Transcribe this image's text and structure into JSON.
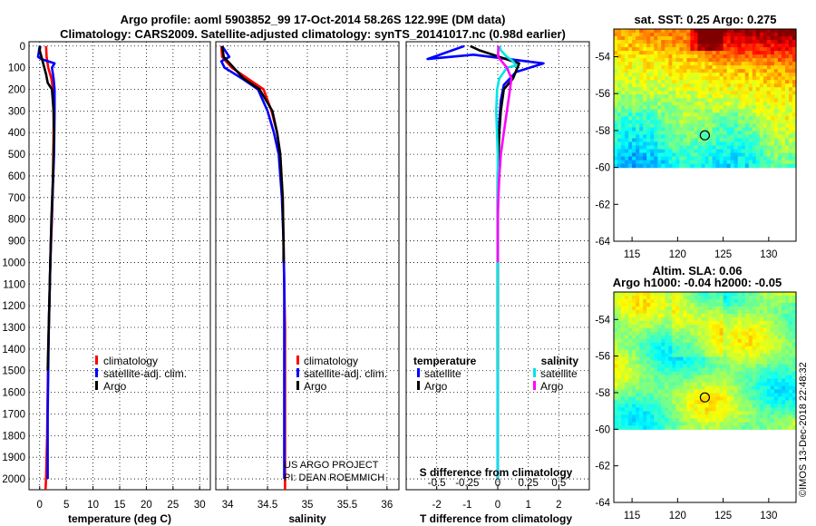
{
  "title_line1": "Argo profile: aoml 5903852_99 17-Oct-2014 58.26S 122.99E (DM data)",
  "title_line2": "Climatology: CARS2009. Satellite-adjusted climatology: synTS_20141017.nc (0.98d earlier)",
  "sst_title": "sat. SST: 0.25 Argo: 0.275",
  "sla_title1": "Altim. SLA: 0.06",
  "sla_title2": "Argo h1000: -0.04 h2000: -0.05",
  "credit1": "US ARGO PROJECT",
  "credit2": "PI: DEAN ROEMMICH",
  "side_text": "©IMOS 13-Dec-2018 22:48:32",
  "colors": {
    "climatology": "#ff0000",
    "satellite": "#0000ff",
    "argo": "#000000",
    "sat_salinity": "#00e5e5",
    "argo_salinity": "#ff00ff"
  },
  "chart_data": [
    {
      "type": "line",
      "name": "temperature",
      "xlabel": "temperature (deg C)",
      "ylabel": "",
      "xlim": [
        -2,
        32
      ],
      "ylim": [
        2050,
        -20
      ],
      "xticks": [
        0,
        5,
        10,
        15,
        20,
        25,
        30
      ],
      "yticks": [
        0,
        100,
        200,
        300,
        400,
        500,
        600,
        700,
        800,
        900,
        1000,
        1100,
        1200,
        1300,
        1400,
        1500,
        1600,
        1700,
        1800,
        1900,
        2000
      ],
      "legend": [
        "climatology",
        "satellite-adj. clim.",
        "Argo"
      ],
      "series": [
        {
          "name": "climatology",
          "color": "#ff0000",
          "x": [
            1.2,
            1.3,
            1.6,
            2.2,
            2.5,
            2.6,
            2.6,
            2.5,
            2.3,
            2.0,
            1.8,
            1.6,
            1.5,
            1.4,
            1.3,
            1.2,
            1.1
          ],
          "y": [
            0,
            50,
            100,
            150,
            200,
            300,
            400,
            600,
            800,
            1000,
            1200,
            1400,
            1600,
            1800,
            1900,
            2000,
            2050
          ]
        },
        {
          "name": "satellite-adj. clim.",
          "color": "#0000ff",
          "x": [
            0.0,
            -0.3,
            0.3,
            2.8,
            2.3,
            2.6,
            2.8,
            2.8,
            2.7,
            2.4,
            2.1,
            1.9,
            1.7,
            1.6,
            1.5,
            1.5,
            1.5
          ],
          "y": [
            0,
            50,
            60,
            80,
            100,
            150,
            200,
            300,
            500,
            700,
            900,
            1100,
            1300,
            1500,
            1700,
            1900,
            2000
          ]
        },
        {
          "name": "Argo",
          "color": "#000000",
          "x": [
            0.1,
            0.0,
            1.2,
            1.5,
            2.3,
            2.6,
            2.7,
            2.5,
            2.2,
            2.0,
            1.8,
            1.6,
            1.5
          ],
          "y": [
            0,
            20,
            130,
            170,
            200,
            300,
            400,
            600,
            800,
            1000,
            1200,
            1400,
            1500
          ]
        }
      ]
    },
    {
      "type": "line",
      "name": "salinity",
      "xlabel": "salinity",
      "ylabel": "",
      "xlim": [
        33.85,
        36.15
      ],
      "ylim": [
        2050,
        -20
      ],
      "xticks": [
        34,
        34.5,
        35,
        35.5,
        36
      ],
      "legend": [
        "climatology",
        "satellite-adj. clim.",
        "Argo"
      ],
      "series": [
        {
          "name": "climatology",
          "color": "#ff0000",
          "x": [
            33.92,
            33.93,
            34.05,
            34.25,
            34.45,
            34.55,
            34.62,
            34.66,
            34.69,
            34.7,
            34.71,
            34.72,
            34.72,
            34.72,
            34.72,
            34.72,
            34.72
          ],
          "y": [
            0,
            50,
            100,
            150,
            200,
            300,
            400,
            500,
            700,
            900,
            1100,
            1300,
            1500,
            1700,
            1900,
            2000,
            2050
          ]
        },
        {
          "name": "satellite-adj. clim.",
          "color": "#0000ff",
          "x": [
            33.93,
            34.02,
            33.92,
            33.96,
            34.18,
            34.38,
            34.5,
            34.58,
            34.64,
            34.68,
            34.7,
            34.71,
            34.71,
            34.71,
            34.71,
            34.71
          ],
          "y": [
            0,
            50,
            70,
            100,
            150,
            200,
            300,
            400,
            500,
            700,
            900,
            1100,
            1300,
            1500,
            1700,
            2000
          ]
        },
        {
          "name": "Argo",
          "color": "#000000",
          "x": [
            33.93,
            33.95,
            34.2,
            34.4,
            34.56,
            34.62,
            34.66,
            34.69,
            34.7,
            34.7
          ],
          "y": [
            0,
            50,
            150,
            200,
            300,
            400,
            500,
            700,
            900,
            1000
          ]
        }
      ]
    },
    {
      "type": "line",
      "name": "difference",
      "xlabel": "T difference from climatology",
      "xlabel_top": "S difference from climatology",
      "xlim": [
        -3,
        3
      ],
      "ylim": [
        2050,
        -20
      ],
      "xticks": [
        -2,
        -1,
        0,
        1,
        2
      ],
      "xticks_top": [
        -0.5,
        -0.25,
        0,
        0.25,
        0.5
      ],
      "xtick_labels_top": [
        "-0.5",
        "-0.25",
        "0",
        "0.25",
        "0.5"
      ],
      "legend_left_title": "temperature",
      "legend_right_title": "salinity",
      "legend_left": [
        "satellite",
        "Argo"
      ],
      "legend_right": [
        "satellite",
        "Argo"
      ],
      "series": [
        {
          "name": "T satellite",
          "color": "#0000ff",
          "x": [
            -1.1,
            -2.3,
            -0.8,
            1.5,
            0.6,
            0.2,
            0.1,
            0.05,
            0.02,
            0.0,
            0.0,
            0.0,
            0.0,
            0.0,
            0.0
          ],
          "y": [
            0,
            60,
            40,
            80,
            120,
            180,
            250,
            350,
            500,
            700,
            900,
            1200,
            1500,
            1800,
            2000
          ]
        },
        {
          "name": "T Argo",
          "color": "#000000",
          "x": [
            -0.9,
            -0.6,
            0.7,
            0.5,
            0.2,
            0.1,
            0.05,
            0.0,
            0.0,
            0.0,
            0.0,
            0.0,
            0.0
          ],
          "y": [
            0,
            20,
            80,
            150,
            200,
            300,
            400,
            600,
            800,
            1000,
            1200,
            1400,
            1500
          ]
        },
        {
          "name": "S satellite",
          "color": "#00e5e5",
          "x": [
            0.06,
            0.1,
            0.3,
            0.5,
            0.6,
            0.3,
            0.05,
            -0.02,
            -0.05,
            0.0,
            0.0,
            0.0,
            0.0,
            0.0,
            0.0,
            0.0,
            0.0
          ],
          "y": [
            0,
            20,
            50,
            70,
            90,
            100,
            150,
            200,
            300,
            500,
            700,
            900,
            1100,
            1300,
            1500,
            1800,
            2000
          ]
        },
        {
          "name": "S Argo",
          "color": "#ff00ff",
          "x": [
            0.02,
            0.01,
            0.3,
            0.45,
            0.4,
            0.3,
            0.2,
            0.1,
            0.05,
            0.02,
            0.0,
            0.0
          ],
          "y": [
            0,
            50,
            100,
            150,
            200,
            300,
            400,
            500,
            600,
            700,
            800,
            1000
          ]
        }
      ]
    },
    {
      "type": "heatmap",
      "name": "sat-sst-map",
      "title": "sat. SST: 0.25 Argo: 0.275",
      "xlim": [
        113,
        133
      ],
      "ylim": [
        -64,
        -52.5
      ],
      "xticks": [
        115,
        120,
        125,
        130
      ],
      "yticks": [
        -54,
        -56,
        -58,
        -60,
        -62,
        -64
      ],
      "data_ylim": [
        -60,
        -52.5
      ],
      "marker": {
        "lon": 122.99,
        "lat": -58.26
      },
      "colormap": "jet"
    },
    {
      "type": "heatmap",
      "name": "altimetry-sla-map",
      "title": "Altim. SLA: 0.06",
      "subtitle": "Argo h1000: -0.04 h2000: -0.05",
      "xlim": [
        113,
        133
      ],
      "ylim": [
        -64,
        -52.5
      ],
      "xticks": [
        115,
        120,
        125,
        130
      ],
      "yticks": [
        -54,
        -56,
        -58,
        -60,
        -62,
        -64
      ],
      "data_ylim": [
        -60,
        -52.5
      ],
      "marker": {
        "lon": 122.99,
        "lat": -58.26
      },
      "colormap": "jet"
    }
  ]
}
